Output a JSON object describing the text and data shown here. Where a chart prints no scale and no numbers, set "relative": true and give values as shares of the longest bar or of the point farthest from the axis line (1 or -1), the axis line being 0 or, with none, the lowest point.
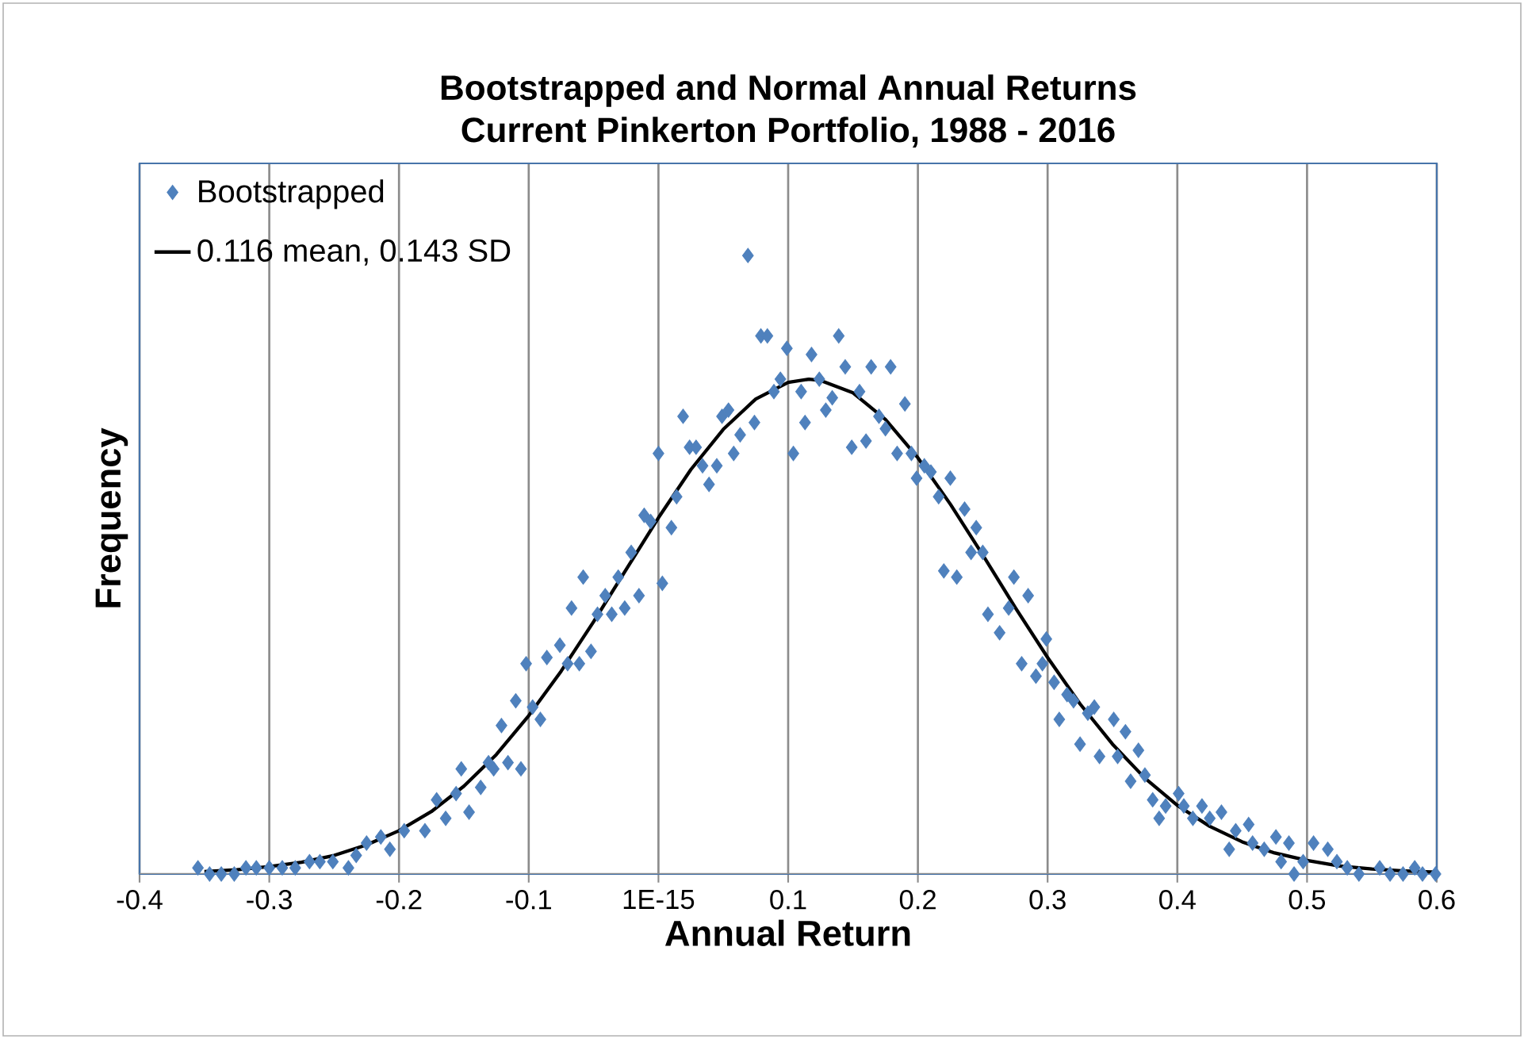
{
  "chart_data": {
    "type": "scatter",
    "title": "Bootstrapped  and Normal Annual Returns",
    "subtitle": "Current Pinkerton Portfolio, 1988 - 2016",
    "xlabel": "Annual Return",
    "ylabel": "Frequency",
    "relative": true,
    "grid": "x",
    "legend": "top left",
    "xlim": [
      -0.4,
      0.6
    ],
    "xticks": [
      -0.4,
      -0.3,
      -0.2,
      -0.1,
      {
        "value": 0,
        "label": "1E-15"
      },
      0.1,
      0.2,
      0.3,
      0.4,
      0.5,
      0.6
    ],
    "series": [
      {
        "name": "Bootstrapped",
        "marker": "diamond",
        "color": "#4f81bd",
        "x": [
          -0.355,
          -0.346,
          -0.337,
          -0.327,
          -0.318,
          -0.31,
          -0.3,
          -0.29,
          -0.28,
          -0.269,
          -0.261,
          -0.251,
          -0.239,
          -0.233,
          -0.225,
          -0.214,
          -0.207,
          -0.196,
          -0.18,
          -0.171,
          -0.164,
          -0.156,
          -0.152,
          -0.146,
          -0.137,
          -0.131,
          -0.127,
          -0.121,
          -0.116,
          -0.11,
          -0.106,
          -0.102,
          -0.097,
          -0.091,
          -0.086,
          -0.076,
          -0.07,
          -0.067,
          -0.061,
          -0.058,
          -0.052,
          -0.047,
          -0.041,
          -0.036,
          -0.031,
          -0.026,
          -0.021,
          -0.015,
          -0.011,
          -0.006,
          0.0,
          0.003,
          0.01,
          0.014,
          0.019,
          0.024,
          0.029,
          0.034,
          0.039,
          0.045,
          0.049,
          0.054,
          0.058,
          0.063,
          0.069,
          0.074,
          0.079,
          0.084,
          0.089,
          0.094,
          0.099,
          0.104,
          0.11,
          0.113,
          0.118,
          0.124,
          0.129,
          0.134,
          0.139,
          0.144,
          0.149,
          0.155,
          0.16,
          0.164,
          0.17,
          0.175,
          0.179,
          0.184,
          0.19,
          0.195,
          0.199,
          0.205,
          0.21,
          0.216,
          0.22,
          0.225,
          0.23,
          0.236,
          0.241,
          0.245,
          0.25,
          0.254,
          0.263,
          0.27,
          0.274,
          0.28,
          0.285,
          0.291,
          0.296,
          0.299,
          0.305,
          0.309,
          0.315,
          0.32,
          0.325,
          0.331,
          0.336,
          0.34,
          0.351,
          0.354,
          0.36,
          0.364,
          0.37,
          0.375,
          0.381,
          0.386,
          0.391,
          0.401,
          0.405,
          0.412,
          0.419,
          0.425,
          0.434,
          0.44,
          0.445,
          0.455,
          0.458,
          0.467,
          0.476,
          0.48,
          0.486,
          0.49,
          0.497,
          0.505,
          0.516,
          0.523,
          0.531,
          0.54,
          0.556,
          0.564,
          0.574,
          0.583,
          0.589,
          0.599
        ],
        "values": [
          0.01,
          0,
          0,
          0,
          0.01,
          0.01,
          0.01,
          0.01,
          0.01,
          0.02,
          0.02,
          0.02,
          0.01,
          0.03,
          0.05,
          0.06,
          0.04,
          0.07,
          0.07,
          0.12,
          0.09,
          0.13,
          0.17,
          0.1,
          0.14,
          0.18,
          0.17,
          0.24,
          0.18,
          0.28,
          0.17,
          0.34,
          0.27,
          0.25,
          0.35,
          0.37,
          0.34,
          0.43,
          0.34,
          0.48,
          0.36,
          0.42,
          0.45,
          0.42,
          0.48,
          0.43,
          0.52,
          0.45,
          0.58,
          0.57,
          0.68,
          0.47,
          0.56,
          0.61,
          0.74,
          0.69,
          0.69,
          0.66,
          0.63,
          0.66,
          0.74,
          0.75,
          0.68,
          0.71,
          1.0,
          0.73,
          0.87,
          0.87,
          0.78,
          0.8,
          0.85,
          0.68,
          0.78,
          0.73,
          0.84,
          0.8,
          0.75,
          0.77,
          0.87,
          0.82,
          0.69,
          0.78,
          0.7,
          0.82,
          0.74,
          0.72,
          0.82,
          0.68,
          0.76,
          0.68,
          0.64,
          0.66,
          0.65,
          0.61,
          0.49,
          0.64,
          0.48,
          0.59,
          0.52,
          0.56,
          0.52,
          0.42,
          0.39,
          0.43,
          0.48,
          0.34,
          0.45,
          0.32,
          0.34,
          0.38,
          0.31,
          0.25,
          0.29,
          0.28,
          0.21,
          0.26,
          0.27,
          0.19,
          0.25,
          0.19,
          0.23,
          0.15,
          0.2,
          0.16,
          0.12,
          0.09,
          0.11,
          0.13,
          0.11,
          0.09,
          0.11,
          0.09,
          0.1,
          0.04,
          0.07,
          0.08,
          0.05,
          0.04,
          0.06,
          0.02,
          0.05,
          0,
          0.02,
          0.05,
          0.04,
          0.02,
          0.01,
          0,
          0.01,
          0,
          0,
          0.01,
          0,
          0
        ]
      },
      {
        "name": "0.116 mean, 0.143 SD",
        "type": "line",
        "color": "#000000",
        "x": [
          -0.35,
          -0.325,
          -0.3,
          -0.275,
          -0.25,
          -0.225,
          -0.2,
          -0.175,
          -0.15,
          -0.125,
          -0.1,
          -0.075,
          -0.05,
          -0.025,
          0,
          0.025,
          0.05,
          0.075,
          0.1,
          0.116,
          0.125,
          0.15,
          0.175,
          0.2,
          0.225,
          0.25,
          0.275,
          0.3,
          0.325,
          0.35,
          0.375,
          0.4,
          0.425,
          0.45,
          0.475,
          0.5,
          0.525,
          0.55,
          0.575,
          0.6
        ],
        "values": [
          0.004,
          0.007,
          0.012,
          0.019,
          0.03,
          0.047,
          0.07,
          0.101,
          0.142,
          0.193,
          0.256,
          0.328,
          0.408,
          0.492,
          0.576,
          0.654,
          0.719,
          0.768,
          0.795,
          0.8,
          0.798,
          0.778,
          0.735,
          0.673,
          0.598,
          0.516,
          0.431,
          0.35,
          0.275,
          0.21,
          0.155,
          0.111,
          0.077,
          0.052,
          0.034,
          0.022,
          0.013,
          0.008,
          0.005,
          0.003
        ]
      }
    ]
  }
}
